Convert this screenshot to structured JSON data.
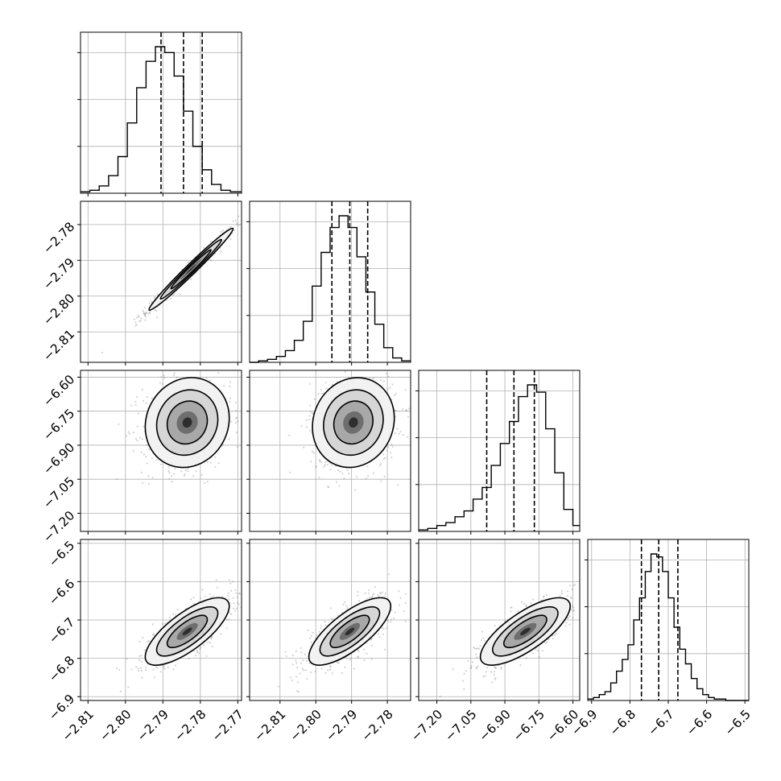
{
  "chart_data": {
    "type": "corner",
    "title": "",
    "n_params": 4,
    "grid": true,
    "legend": "none",
    "colors": {
      "line": "#000000",
      "grid": "#b0b0b0",
      "points": "#808080"
    },
    "params": [
      {
        "label": "",
        "range": [
          -2.812,
          -2.769
        ],
        "ticks": [
          -2.81,
          -2.8,
          -2.79,
          -2.78,
          -2.77
        ],
        "tick_labels": [
          "−2.81",
          "−2.80",
          "−2.79",
          "−2.78",
          "−2.77"
        ],
        "mean": -2.7845,
        "std": 0.0051,
        "quantiles": [
          -2.7905,
          -2.7845,
          -2.7795
        ]
      },
      {
        "label": "",
        "range": [
          -2.8185,
          -2.7735
        ],
        "ticks": [
          -2.81,
          -2.8,
          -2.79,
          -2.78
        ],
        "tick_labels": [
          "−2.81",
          "−2.80",
          "−2.79",
          "−2.78"
        ],
        "mean": -2.7905,
        "std": 0.0052,
        "quantiles": [
          -2.7955,
          -2.7905,
          -2.7855
        ]
      },
      {
        "label": "",
        "range": [
          -7.28,
          -6.57
        ],
        "ticks": [
          -7.2,
          -7.05,
          -6.9,
          -6.75,
          -6.6
        ],
        "tick_labels": [
          "−7.20",
          "−7.05",
          "−6.90",
          "−6.75",
          "−6.60"
        ],
        "mean": -6.85,
        "std": 0.09,
        "quantiles": [
          -6.98,
          -6.86,
          -6.77
        ]
      },
      {
        "label": "",
        "range": [
          -6.91,
          -6.49
        ],
        "ticks": [
          -6.9,
          -6.8,
          -6.7,
          -6.6,
          -6.5
        ],
        "tick_labels": [
          "−6.9",
          "−6.8",
          "−6.7",
          "−6.6",
          "−6.5"
        ],
        "mean": -6.725,
        "std": 0.04,
        "quantiles": [
          -6.77,
          -6.725,
          -6.675
        ]
      }
    ],
    "histograms": [
      {
        "param": 0,
        "edges": [
          -2.812,
          -2.8095,
          -2.807,
          -2.8045,
          -2.802,
          -2.7995,
          -2.797,
          -2.7945,
          -2.792,
          -2.7895,
          -2.787,
          -2.7845,
          -2.782,
          -2.7795,
          -2.777,
          -2.7745,
          -2.772,
          -2.769
        ],
        "counts": [
          1,
          2,
          5,
          12,
          25,
          48,
          72,
          90,
          100,
          96,
          80,
          56,
          32,
          16,
          6,
          2,
          1
        ]
      },
      {
        "param": 1,
        "edges": [
          -2.8185,
          -2.816,
          -2.8135,
          -2.811,
          -2.8085,
          -2.806,
          -2.8035,
          -2.801,
          -2.7985,
          -2.796,
          -2.7935,
          -2.791,
          -2.7885,
          -2.786,
          -2.7835,
          -2.781,
          -2.7785,
          -2.776,
          -2.7735
        ],
        "counts": [
          0,
          1,
          2,
          4,
          8,
          15,
          28,
          52,
          75,
          92,
          100,
          92,
          72,
          48,
          26,
          10,
          3,
          1
        ]
      },
      {
        "param": 2,
        "edges": [
          -7.28,
          -7.24,
          -7.2,
          -7.16,
          -7.12,
          -7.08,
          -7.04,
          -7.0,
          -6.96,
          -6.92,
          -6.88,
          -6.84,
          -6.8,
          -6.76,
          -6.72,
          -6.68,
          -6.64,
          -6.6,
          -6.57
        ],
        "counts": [
          1,
          2,
          4,
          6,
          10,
          14,
          22,
          30,
          45,
          60,
          75,
          92,
          100,
          95,
          70,
          40,
          15,
          4
        ]
      },
      {
        "param": 3,
        "edges": [
          -6.91,
          -6.895,
          -6.88,
          -6.865,
          -6.85,
          -6.835,
          -6.82,
          -6.805,
          -6.79,
          -6.775,
          -6.76,
          -6.745,
          -6.73,
          -6.715,
          -6.7,
          -6.685,
          -6.67,
          -6.655,
          -6.64,
          -6.625,
          -6.61,
          -6.595,
          -6.58,
          -6.565,
          -6.55,
          -6.535,
          -6.52,
          -6.505,
          -6.49
        ],
        "counts": [
          1,
          2,
          4,
          6,
          12,
          20,
          28,
          38,
          55,
          70,
          88,
          100,
          98,
          88,
          70,
          50,
          35,
          25,
          15,
          8,
          4,
          2,
          1,
          1,
          0,
          0,
          0,
          0
        ]
      }
    ],
    "pairs": [
      {
        "x": 0,
        "y": 1,
        "corr": 0.985,
        "center": [
          -2.7825,
          -2.7925
        ]
      },
      {
        "x": 0,
        "y": 2,
        "corr": 0.1,
        "center": [
          -2.7835,
          -6.8
        ]
      },
      {
        "x": 1,
        "y": 2,
        "corr": 0.1,
        "center": [
          -2.7895,
          -6.8
        ]
      },
      {
        "x": 0,
        "y": 3,
        "corr": 0.75,
        "center": [
          -2.7835,
          -6.73
        ]
      },
      {
        "x": 1,
        "y": 3,
        "corr": 0.75,
        "center": [
          -2.7905,
          -6.73
        ]
      },
      {
        "x": 2,
        "y": 3,
        "corr": 0.75,
        "center": [
          -6.81,
          -6.73
        ]
      }
    ]
  }
}
